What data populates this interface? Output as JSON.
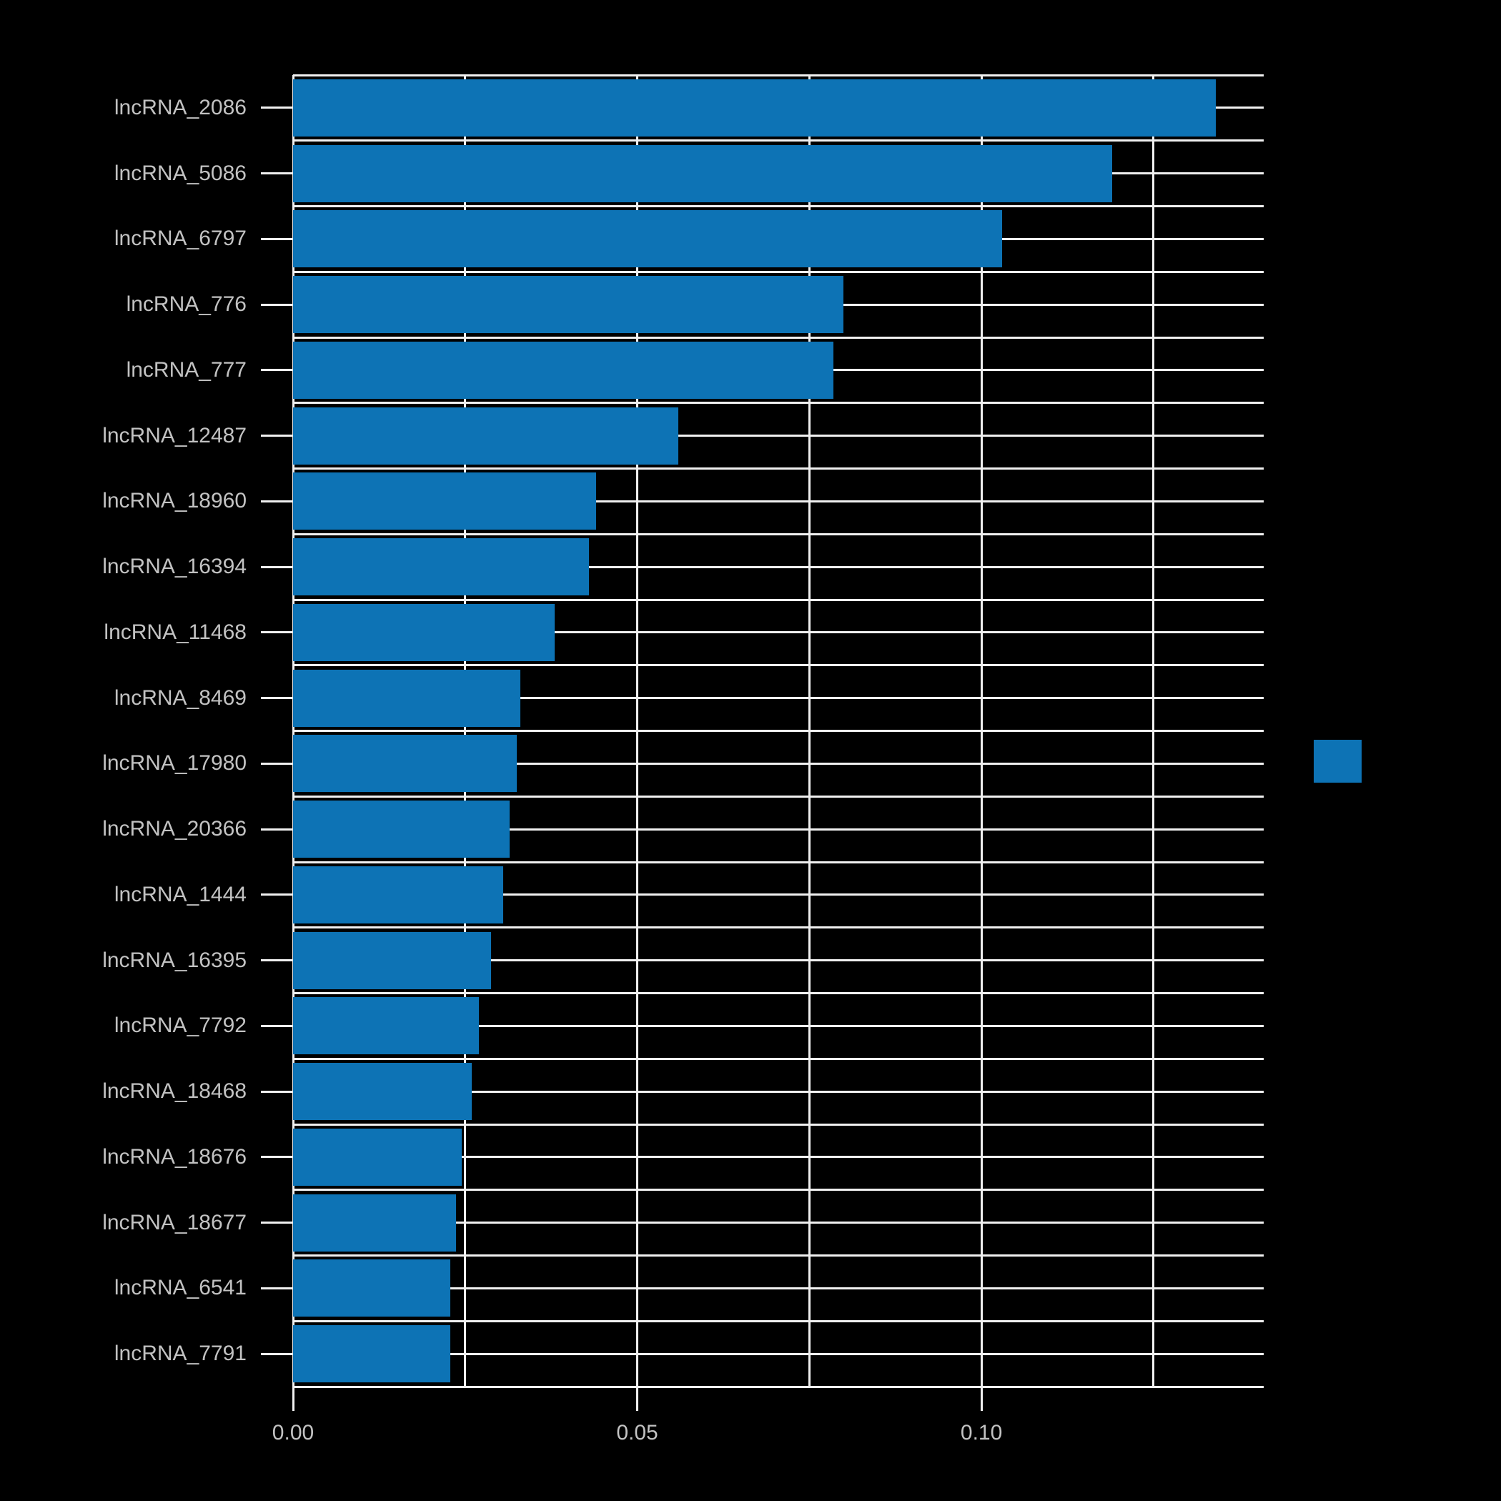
{
  "figure": {
    "background_color": "#000000",
    "text_color": "#c2c2c2",
    "grid_color": "#f0f0f0"
  },
  "chart_data": {
    "type": "bar",
    "orientation": "horizontal",
    "title": "",
    "xlabel": "",
    "ylabel": "",
    "categories": [
      "lncRNA_2086",
      "lncRNA_5086",
      "lncRNA_6797",
      "lncRNA_776",
      "lncRNA_777",
      "lncRNA_12487",
      "lncRNA_18960",
      "lncRNA_16394",
      "lncRNA_11468",
      "lncRNA_8469",
      "lncRNA_17980",
      "lncRNA_20366",
      "lncRNA_1444",
      "lncRNA_16395",
      "lncRNA_7792",
      "lncRNA_18468",
      "lncRNA_18676",
      "lncRNA_18677",
      "lncRNA_6541",
      "lncRNA_7791"
    ],
    "values": [
      0.134,
      0.119,
      0.103,
      0.08,
      0.0785,
      0.056,
      0.044,
      0.043,
      0.038,
      0.033,
      0.0325,
      0.0315,
      0.0305,
      0.0288,
      0.027,
      0.026,
      0.0245,
      0.0237,
      0.0228,
      0.0228
    ],
    "xlim": [
      0,
      0.141
    ],
    "x_tick_labels": [
      "0.00",
      "0.05",
      "0.10"
    ],
    "x_tick_values": [
      0.0,
      0.05,
      0.1
    ],
    "gridline_values": [
      0.0,
      0.025,
      0.05,
      0.075,
      0.1,
      0.125
    ],
    "grid": true,
    "bar_color": "#0d73b5",
    "legend": {
      "position": "right",
      "swatch_color": "#0d73b5",
      "label": ""
    }
  }
}
